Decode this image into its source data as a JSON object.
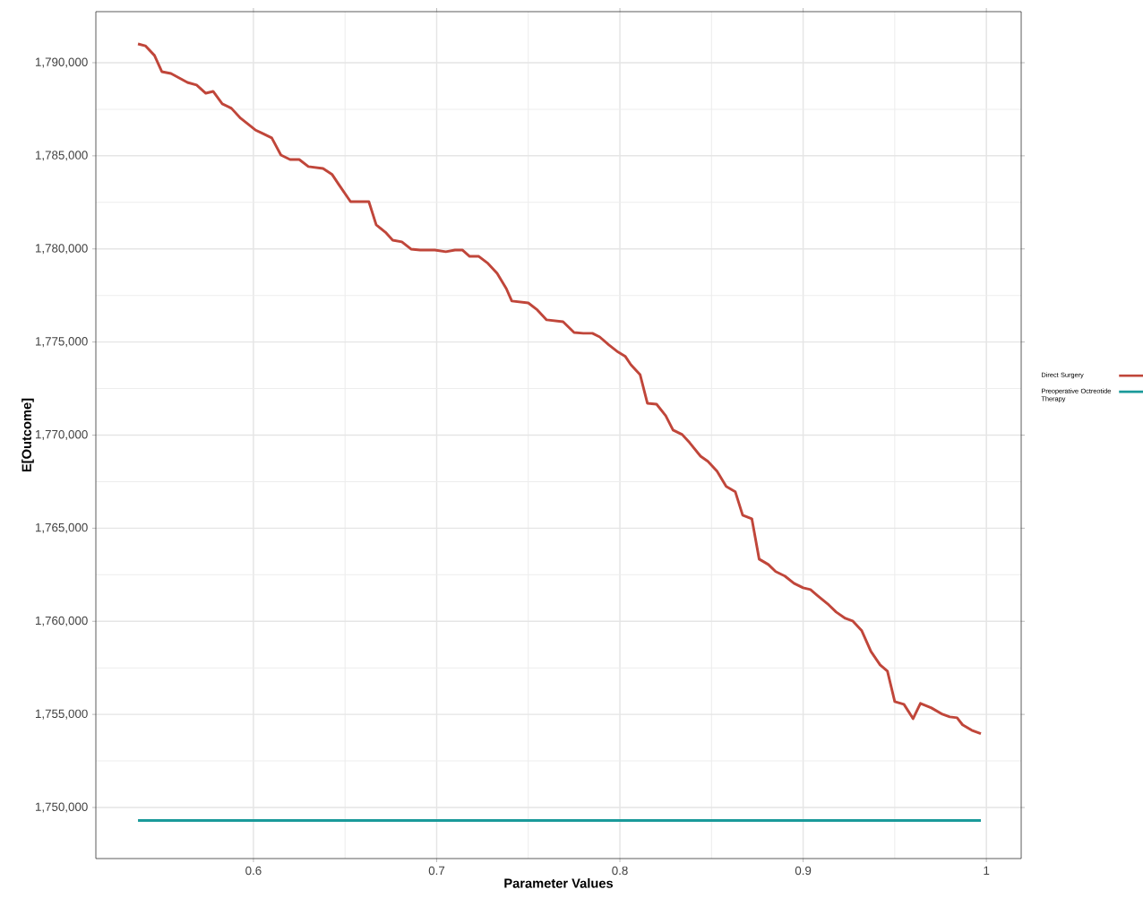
{
  "chart_data": {
    "type": "line",
    "xlabel": "Parameter Values",
    "ylabel": "E[Outcome]",
    "xlim": [
      0.514,
      1.019
    ],
    "ylim": [
      1747257,
      1792743
    ],
    "xticks": [
      0.6,
      0.7,
      0.8,
      0.9,
      1
    ],
    "yticks": [
      {
        "value": 1750000,
        "label": "1,750,000"
      },
      {
        "value": 1755000,
        "label": "1,755,000"
      },
      {
        "value": 1760000,
        "label": "1,760,000"
      },
      {
        "value": 1765000,
        "label": "1,765,000"
      },
      {
        "value": 1770000,
        "label": "1,770,000"
      },
      {
        "value": 1775000,
        "label": "1,775,000"
      },
      {
        "value": 1780000,
        "label": "1,780,000"
      },
      {
        "value": 1785000,
        "label": "1,785,000"
      },
      {
        "value": 1790000,
        "label": "1,790,000"
      }
    ],
    "grid": true,
    "legend": "right",
    "marker": "none",
    "line_style": "solid",
    "series": [
      {
        "name": "Direct Surgery",
        "color": "#c0463a",
        "x": [
          0.537,
          0.541,
          0.546,
          0.55,
          0.555,
          0.564,
          0.569,
          0.574,
          0.578,
          0.583,
          0.588,
          0.593,
          0.601,
          0.605,
          0.61,
          0.615,
          0.62,
          0.625,
          0.63,
          0.638,
          0.643,
          0.647,
          0.653,
          0.66,
          0.663,
          0.667,
          0.672,
          0.676,
          0.681,
          0.686,
          0.691,
          0.699,
          0.705,
          0.71,
          0.714,
          0.718,
          0.723,
          0.728,
          0.733,
          0.738,
          0.741,
          0.75,
          0.755,
          0.76,
          0.769,
          0.775,
          0.78,
          0.785,
          0.789,
          0.794,
          0.799,
          0.803,
          0.806,
          0.811,
          0.815,
          0.82,
          0.825,
          0.829,
          0.834,
          0.838,
          0.844,
          0.848,
          0.853,
          0.858,
          0.863,
          0.867,
          0.872,
          0.876,
          0.881,
          0.885,
          0.89,
          0.895,
          0.9,
          0.904,
          0.908,
          0.914,
          0.918,
          0.923,
          0.927,
          0.932,
          0.937,
          0.942,
          0.946,
          0.95,
          0.955,
          0.96,
          0.964,
          0.97,
          0.976,
          0.98,
          0.984,
          0.987,
          0.992,
          0.997
        ],
        "values": [
          1791010,
          1790910,
          1790390,
          1789520,
          1789420,
          1788940,
          1788800,
          1788360,
          1788460,
          1787790,
          1787550,
          1787020,
          1786390,
          1786200,
          1785960,
          1785040,
          1784800,
          1784800,
          1784420,
          1784320,
          1783990,
          1783400,
          1782540,
          1782540,
          1782540,
          1781290,
          1780900,
          1780470,
          1780380,
          1779990,
          1779940,
          1779940,
          1779850,
          1779940,
          1779940,
          1779600,
          1779600,
          1779220,
          1778690,
          1777870,
          1777200,
          1777100,
          1776720,
          1776190,
          1776090,
          1775510,
          1775470,
          1775470,
          1775270,
          1774840,
          1774460,
          1774220,
          1773780,
          1773250,
          1771710,
          1771660,
          1771040,
          1770270,
          1770030,
          1769600,
          1768870,
          1768590,
          1768060,
          1767240,
          1766950,
          1765700,
          1765510,
          1763340,
          1763050,
          1762670,
          1762430,
          1762040,
          1761800,
          1761700,
          1761370,
          1760880,
          1760500,
          1760160,
          1760020,
          1759490,
          1758380,
          1757660,
          1757320,
          1755690,
          1755540,
          1754770,
          1755590,
          1755350,
          1755010,
          1754870,
          1754820,
          1754440,
          1754150,
          1753960
        ]
      },
      {
        "name": "Preoperative Octreotide Therapy",
        "color": "#1a9a9a",
        "x": [
          0.537,
          0.997
        ],
        "values": [
          1749300,
          1749300
        ]
      }
    ]
  }
}
